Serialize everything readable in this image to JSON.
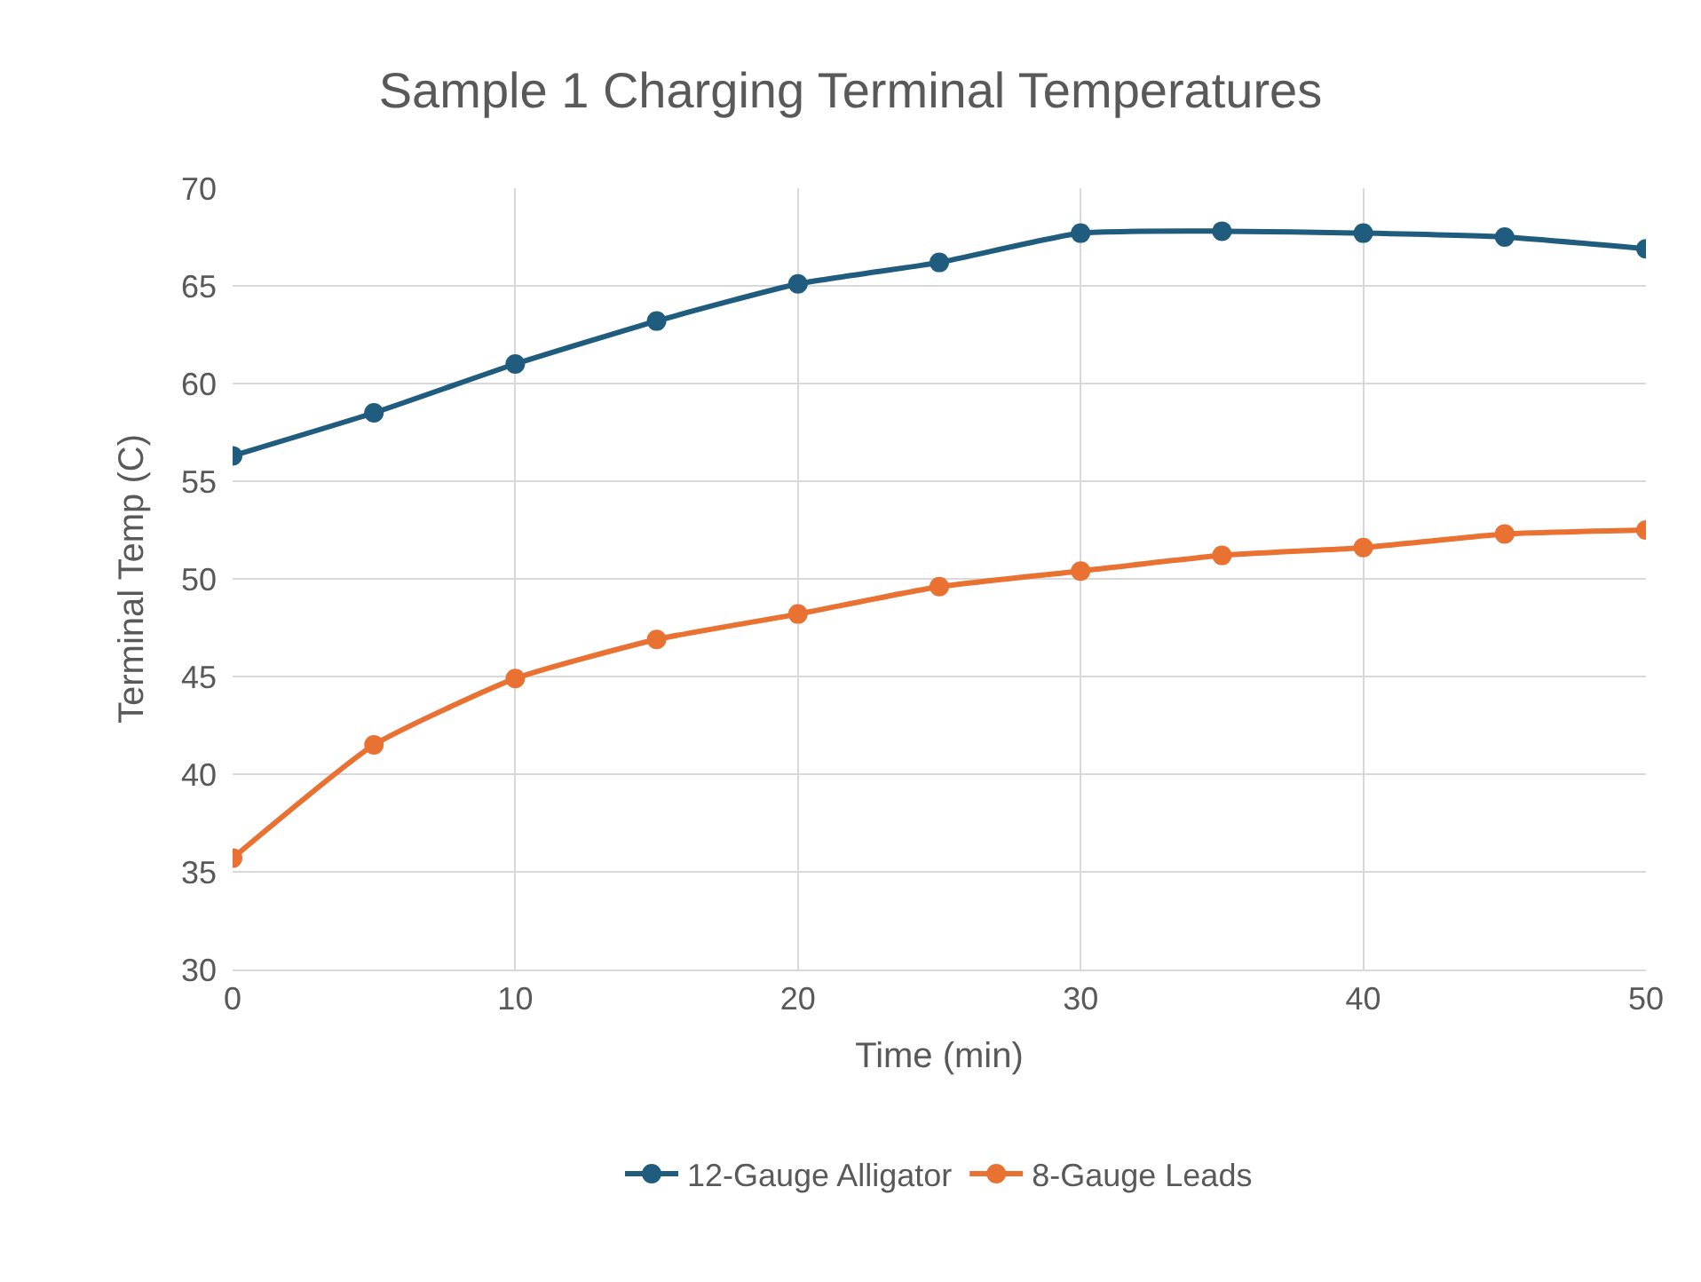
{
  "chart_data": {
    "type": "line",
    "title": "Sample 1 Charging Terminal Temperatures",
    "xlabel": "Time (min)",
    "ylabel": "Terminal Temp (C)",
    "x": [
      0,
      5,
      10,
      15,
      20,
      25,
      30,
      35,
      40,
      45,
      50
    ],
    "series": [
      {
        "name": "12-Gauge Alligator",
        "color": "#1f5c7d",
        "values": [
          56.3,
          58.5,
          61.0,
          63.2,
          65.1,
          66.2,
          67.7,
          67.8,
          67.7,
          67.5,
          66.9
        ]
      },
      {
        "name": "8-Gauge Leads",
        "color": "#e97132",
        "values": [
          35.7,
          41.5,
          44.9,
          46.9,
          48.2,
          49.6,
          50.4,
          51.2,
          51.6,
          52.3,
          52.5
        ]
      }
    ],
    "xlim": [
      0,
      50
    ],
    "xticks": [
      0,
      10,
      20,
      30,
      40,
      50
    ],
    "ylim": [
      30,
      70
    ],
    "yticks": [
      30,
      35,
      40,
      45,
      50,
      55,
      60,
      65,
      70
    ],
    "grid": true,
    "legend": "bottom",
    "marker": "circle",
    "line_style": "solid"
  }
}
